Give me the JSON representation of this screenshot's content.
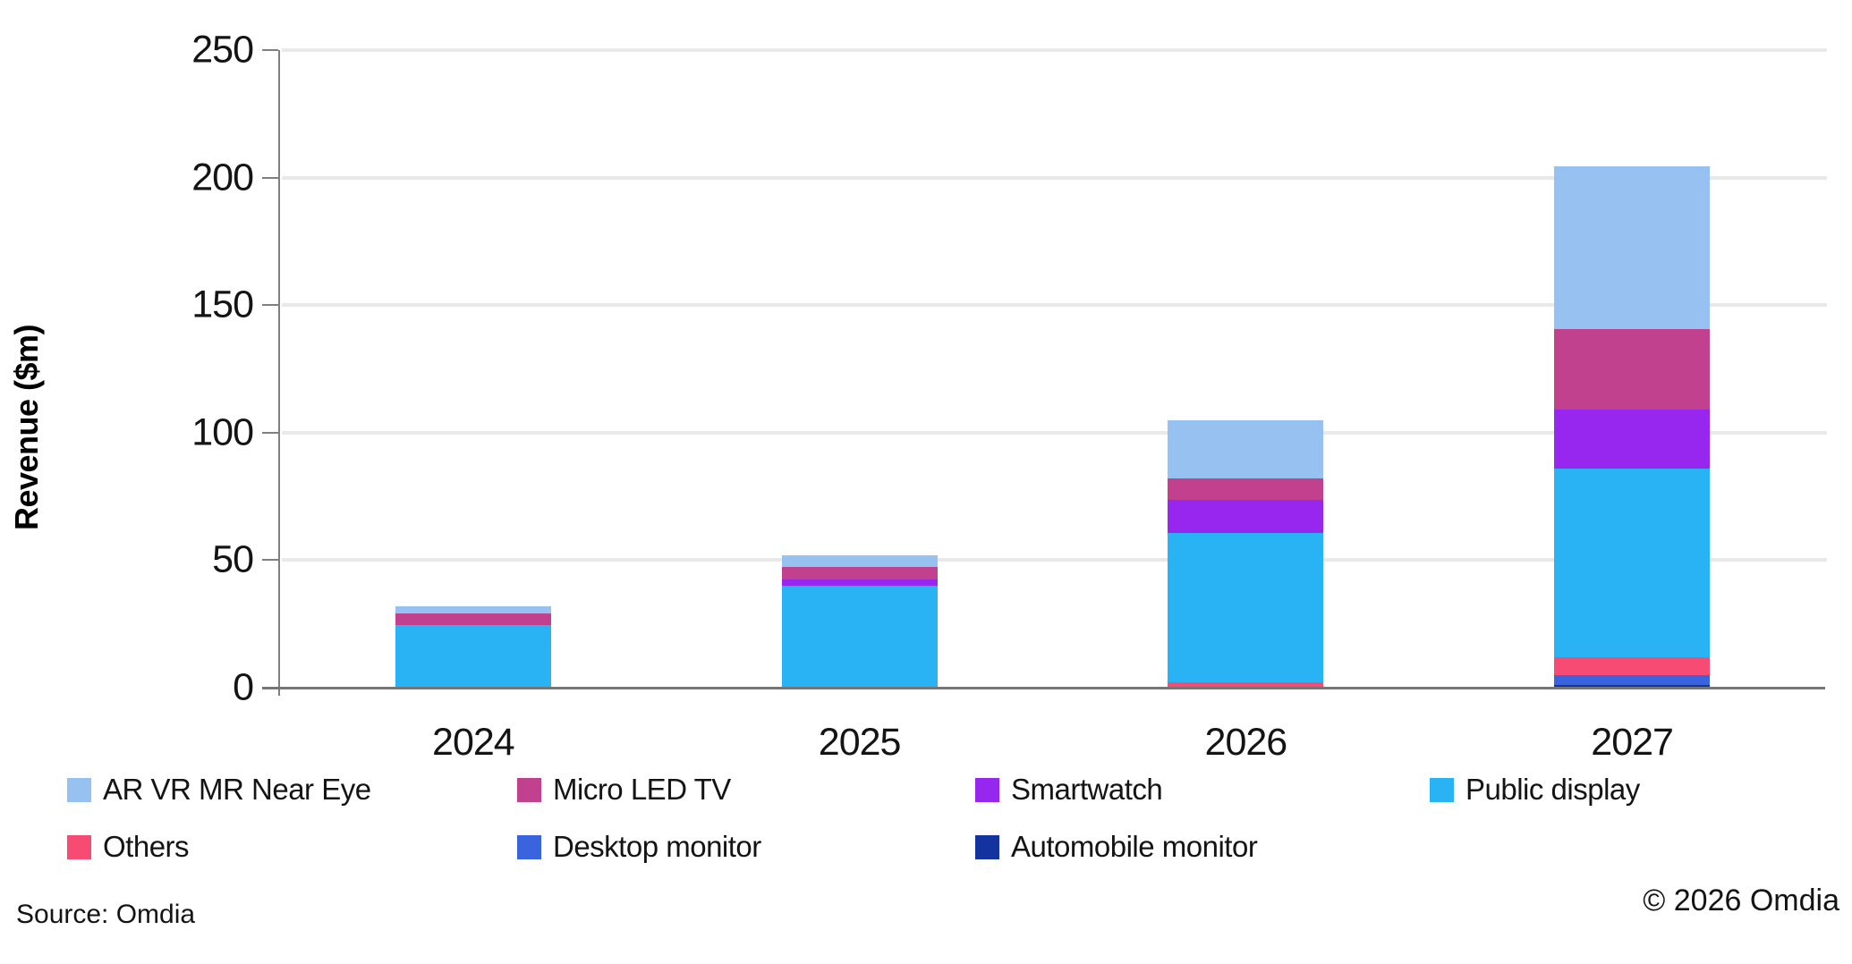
{
  "figure": {
    "source_note": "Source: Omdia",
    "copyright_note": "© 2026 Omdia"
  },
  "chart_data": {
    "type": "bar",
    "stacked": true,
    "title": "",
    "xlabel": "",
    "ylabel": "Revenue ($m)",
    "ylim": [
      0,
      250
    ],
    "yticks": [
      0,
      50,
      100,
      150,
      200,
      250
    ],
    "grid": true,
    "legend_position": "bottom",
    "categories": [
      "2024",
      "2025",
      "2026",
      "2027"
    ],
    "series": [
      {
        "name": "AR VR MR Near Eye",
        "color": "#97c1f1",
        "values": [
          3,
          4.5,
          23,
          64
        ]
      },
      {
        "name": "Micro LED TV",
        "color": "#c2418e",
        "values": [
          4.5,
          5,
          8.5,
          31.5
        ]
      },
      {
        "name": "Smartwatch",
        "color": "#9726ee",
        "values": [
          0,
          2.5,
          13,
          23
        ]
      },
      {
        "name": "Public display",
        "color": "#29b3f5",
        "values": [
          24.5,
          40,
          58.5,
          74
        ]
      },
      {
        "name": "Others",
        "color": "#f84b73",
        "values": [
          0,
          0,
          2,
          7
        ]
      },
      {
        "name": "Desktop monitor",
        "color": "#3a63de",
        "values": [
          0,
          0,
          0,
          4
        ]
      },
      {
        "name": "Automobile monitor",
        "color": "#13339f",
        "values": [
          0,
          0,
          0,
          1
        ]
      }
    ],
    "stack_order_bottom_to_top": [
      "Automobile monitor",
      "Desktop monitor",
      "Others",
      "Public display",
      "Smartwatch",
      "Micro LED TV",
      "AR VR MR Near Eye"
    ]
  }
}
